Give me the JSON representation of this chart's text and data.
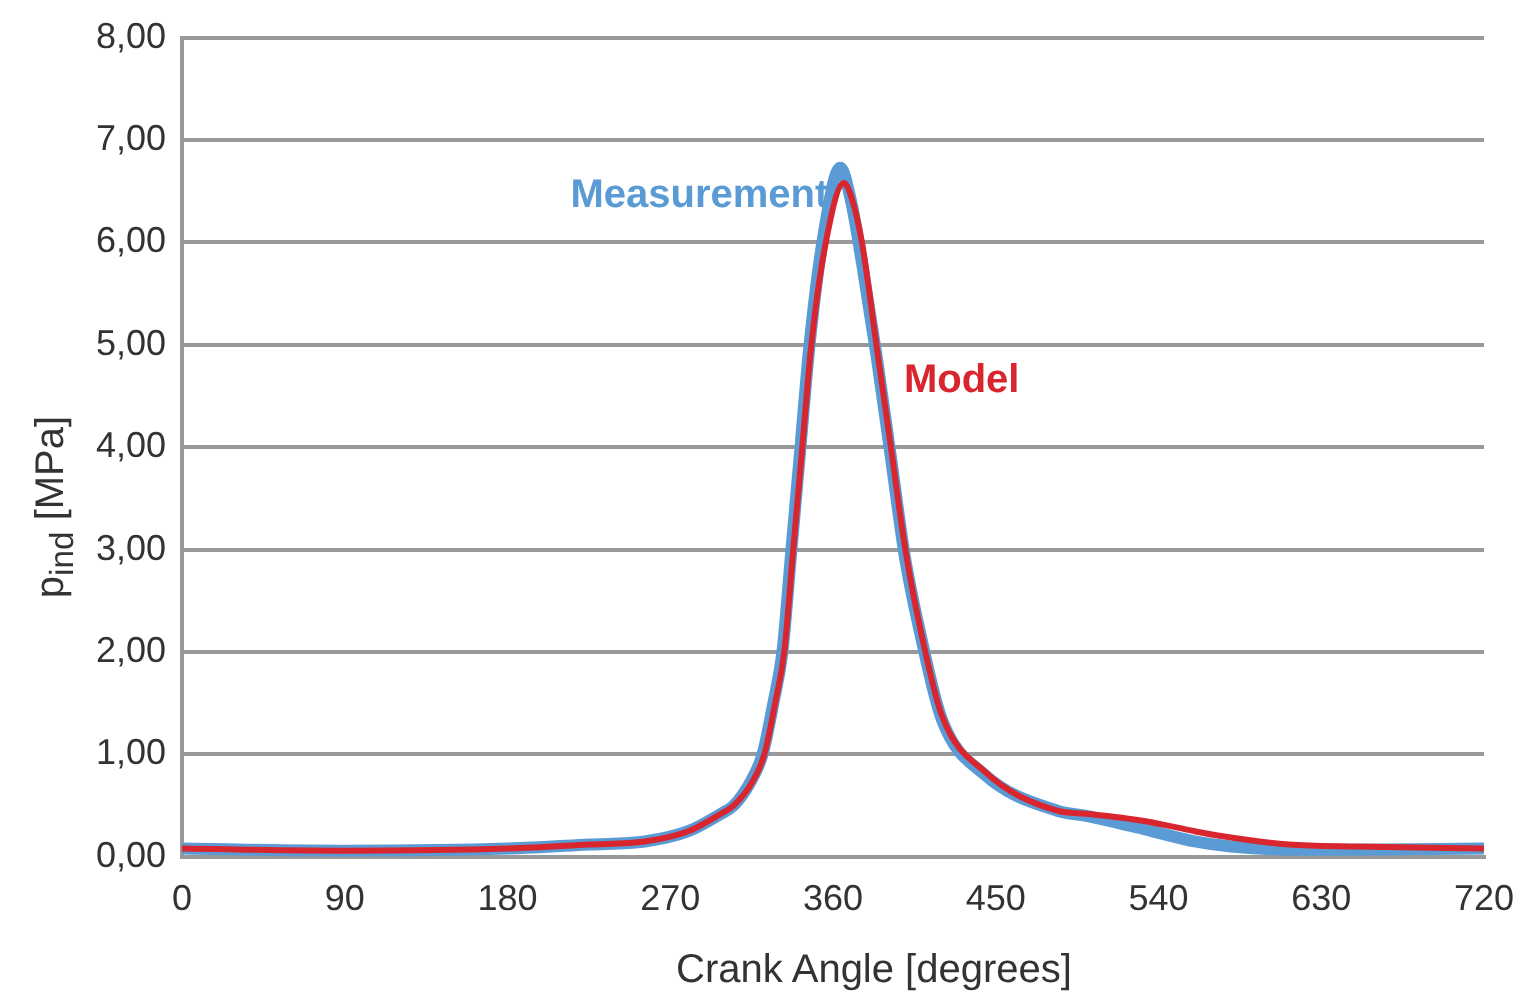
{
  "chart_data": {
    "type": "line",
    "xlabel": "Crank Angle [degrees]",
    "ylabel": "p$_{ind}$ [MPa]",
    "xlim": [
      0,
      720
    ],
    "xticks": [
      0,
      90,
      180,
      270,
      360,
      450,
      540,
      630,
      720
    ],
    "ylim": [
      0,
      8
    ],
    "yticks": [
      {
        "value": 0,
        "label": "0,00"
      },
      {
        "value": 1,
        "label": "1,00"
      },
      {
        "value": 2,
        "label": "2,00"
      },
      {
        "value": 3,
        "label": "3,00"
      },
      {
        "value": 4,
        "label": "4,00"
      },
      {
        "value": 5,
        "label": "5,00"
      },
      {
        "value": 6,
        "label": "6,00"
      },
      {
        "value": 7,
        "label": "7,00"
      },
      {
        "value": 8,
        "label": "8,00"
      }
    ],
    "grid": "y",
    "legend": false,
    "marker": "none",
    "line_style": "solid",
    "series": [
      {
        "name": "Measurement",
        "color": "#5b9bd5",
        "x": [
          0,
          90,
          180,
          225,
          256,
          280,
          298,
          305,
          314,
          321,
          327,
          332,
          337,
          342,
          347,
          355,
          364,
          370,
          376,
          384,
          392,
          400,
          408,
          420,
          444,
          484,
          500,
          532,
          560,
          580,
          612,
          650,
          720
        ],
        "values": [
          0.08,
          0.06,
          0.08,
          0.12,
          0.15,
          0.25,
          0.42,
          0.5,
          0.72,
          1.0,
          1.5,
          2.0,
          3.0,
          4.0,
          5.0,
          6.1,
          6.73,
          6.4,
          5.8,
          4.9,
          3.9,
          2.9,
          2.2,
          1.35,
          0.8,
          0.45,
          0.4,
          0.27,
          0.15,
          0.1,
          0.07,
          0.07,
          0.08
        ]
      },
      {
        "name": "Model",
        "color": "#d9262e",
        "x": [
          0,
          90,
          180,
          225,
          256,
          280,
          298,
          305,
          315,
          322,
          328,
          333,
          338,
          343,
          348,
          356,
          366,
          370,
          376,
          384,
          392,
          400,
          408,
          420,
          444,
          484,
          500,
          532,
          560,
          572,
          612,
          650,
          720
        ],
        "values": [
          0.08,
          0.06,
          0.08,
          0.12,
          0.15,
          0.25,
          0.42,
          0.5,
          0.72,
          1.0,
          1.5,
          2.0,
          3.0,
          4.0,
          5.0,
          6.0,
          6.58,
          6.45,
          6.0,
          5.0,
          4.0,
          3.0,
          2.25,
          1.39,
          0.83,
          0.45,
          0.42,
          0.35,
          0.25,
          0.21,
          0.12,
          0.1,
          0.08
        ]
      }
    ]
  }
}
